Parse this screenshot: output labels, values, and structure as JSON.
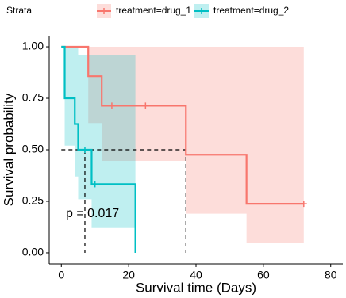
{
  "chart_data": {
    "type": "survival",
    "x_label": "Survival time (Days)",
    "y_label": "Survival probability",
    "legend_title": "Strata",
    "annotation": "p = 0.017",
    "xlim": [
      -3.6,
      83.6
    ],
    "ylim": [
      -0.054,
      1.054
    ],
    "xticks": [
      0,
      20,
      40,
      60,
      80
    ],
    "yticks": [
      {
        "value": 0,
        "label": "0.00"
      },
      {
        "value": 0.25,
        "label": "0.25"
      },
      {
        "value": 0.5,
        "label": "0.50"
      },
      {
        "value": 0.75,
        "label": "0.75"
      },
      {
        "value": 1,
        "label": "1.00"
      }
    ],
    "median": {
      "y": 0.5,
      "x": [
        7,
        37
      ]
    },
    "series": [
      {
        "name": "treatment=drug_1",
        "color": "#F8766D",
        "x": [
          0,
          8,
          12,
          37,
          55,
          72
        ],
        "values": [
          1,
          0.857,
          0.714,
          0.476,
          0.238,
          0.238
        ],
        "ci_upper": [
          1,
          1,
          1,
          1,
          1,
          1
        ],
        "ci_lower": [
          1,
          0.63,
          0.446,
          0.19,
          0.046,
          0.046
        ],
        "censor_x": [
          15,
          25,
          72
        ],
        "censor_values": [
          0.714,
          0.714,
          0.238
        ]
      },
      {
        "name": "treatment=drug_2",
        "color": "#00BFC4",
        "x": [
          0,
          1,
          4,
          5,
          9,
          22
        ],
        "values": [
          1,
          0.75,
          0.625,
          0.5,
          0.333,
          0
        ],
        "ci_upper": [
          1,
          1,
          1,
          0.96,
          0.96,
          0.96
        ],
        "ci_lower": [
          1,
          0.52,
          0.37,
          0.26,
          0.12,
          0.12
        ],
        "censor_x": [
          7,
          10
        ],
        "censor_values": [
          0.5,
          0.333
        ]
      }
    ]
  }
}
